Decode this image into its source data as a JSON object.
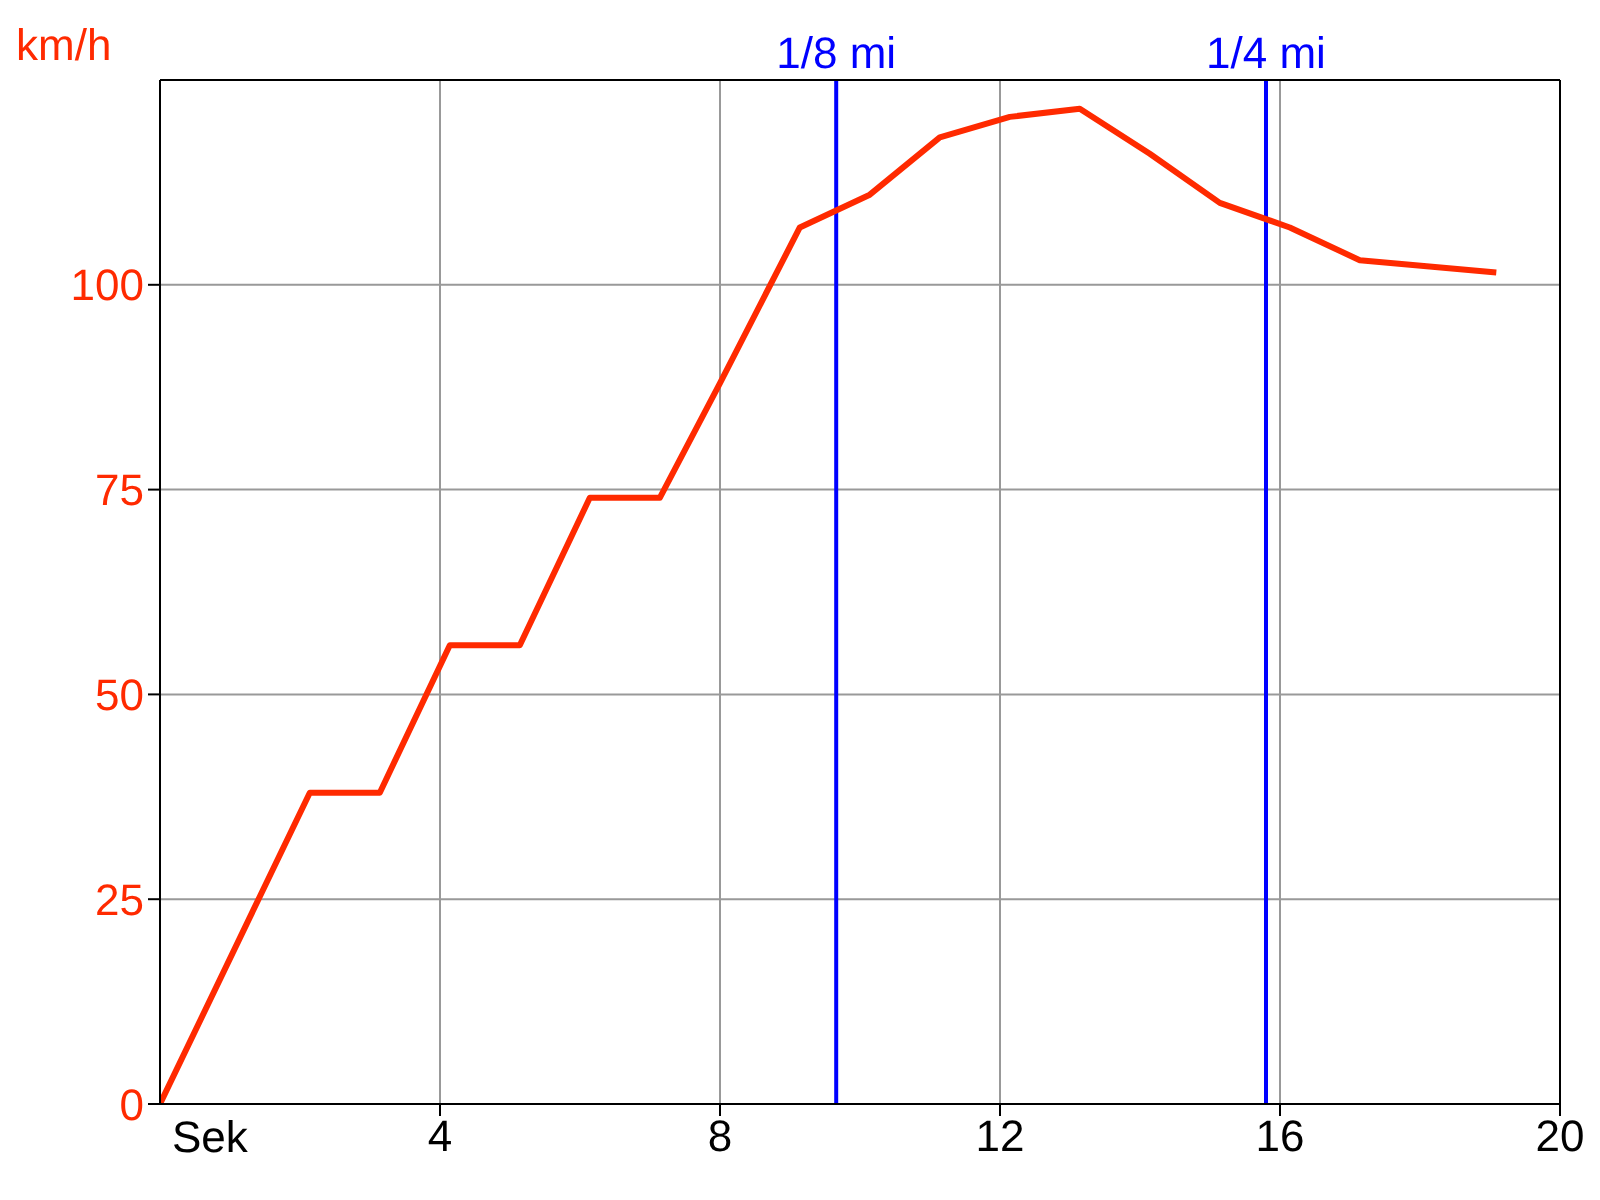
{
  "chart_data": {
    "type": "line",
    "xlabel": "Sek",
    "ylabel": "km/h",
    "x": [
      0,
      2.14,
      3.14,
      4.14,
      5.14,
      6.14,
      7.14,
      8,
      9.14,
      10.14,
      11.14,
      12.14,
      13.14,
      14.14,
      15.14,
      16.14,
      17.14,
      19.09
    ],
    "series": [
      {
        "color": "#ff2a00",
        "values": [
          0,
          38,
          38,
          56,
          56,
          74,
          74,
          88,
          107,
          111,
          118,
          120.5,
          121.5,
          116,
          110,
          107,
          103,
          101.5
        ]
      }
    ],
    "xlim": [
      0,
      20
    ],
    "xticks": [
      4,
      8,
      12,
      16,
      20
    ],
    "ylim": [
      0,
      125
    ],
    "yticks": [
      0,
      25,
      50,
      75,
      100
    ],
    "ref_lines": [
      {
        "axis": "x",
        "value": 9.66,
        "label": "1/8 mi",
        "color": "#0000ff"
      },
      {
        "axis": "x",
        "value": 15.8,
        "label": "1/4 mi",
        "color": "#0000ff"
      }
    ],
    "grid": true,
    "legend": false,
    "marker": "none",
    "line_style": "solid"
  }
}
